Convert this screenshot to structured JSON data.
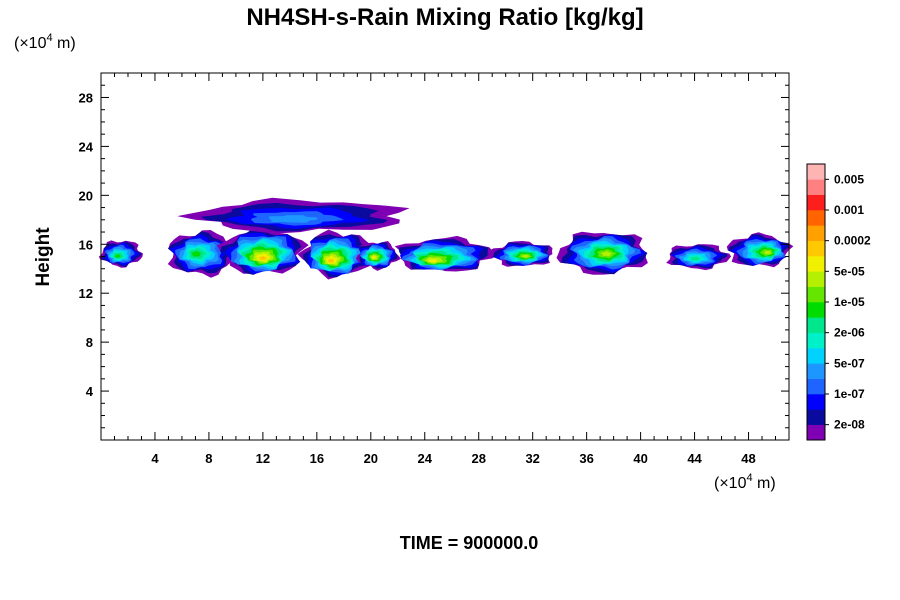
{
  "chart_data": {
    "type": "heatmap",
    "title": "NH4SH-s-Rain Mixing Ratio [kg/kg]",
    "ylabel": "Height",
    "xlabel": "",
    "x_unit_prefix": "(×10",
    "x_unit_exp": "4",
    "x_unit_suffix": " m)",
    "y_unit_prefix": "(×10",
    "y_unit_exp": "4",
    "y_unit_suffix": " m)",
    "xlim": [
      0,
      51
    ],
    "ylim": [
      0,
      30
    ],
    "x_ticks": [
      "4",
      "8",
      "12",
      "16",
      "20",
      "24",
      "28",
      "32",
      "36",
      "40",
      "44",
      "48"
    ],
    "y_ticks": [
      "4",
      "8",
      "12",
      "16",
      "20",
      "24",
      "28"
    ],
    "grid": false,
    "annotation": "TIME = 900000.0",
    "colorbar": {
      "colors": [
        "#7f00b2",
        "#0a0a9e",
        "#0000ff",
        "#1e64ff",
        "#1e96ff",
        "#00d2ff",
        "#00f0c8",
        "#00e68c",
        "#00dc00",
        "#64e600",
        "#b4f000",
        "#f0f000",
        "#ffc800",
        "#ffa000",
        "#ff6400",
        "#ff1e1e",
        "#ff8080",
        "#ffb4b4"
      ],
      "labels": [
        "2e-08",
        "1e-07",
        "5e-07",
        "2e-06",
        "1e-05",
        "5e-05",
        "0.0002",
        "0.001",
        "0.005"
      ]
    },
    "cloud_bands": [
      {
        "x0": 0.0,
        "x1": 3.0,
        "y0": 14.2,
        "y1": 16.3,
        "peak": 8,
        "cx": 1.2,
        "cy": 15.0
      },
      {
        "x0": 5.0,
        "x1": 10.0,
        "y0": 13.5,
        "y1": 17.0,
        "peak": 8,
        "cx": 7.0,
        "cy": 15.2
      },
      {
        "x0": 9.0,
        "x1": 15.0,
        "y0": 13.6,
        "y1": 17.3,
        "peak": 12,
        "cx": 12.0,
        "cy": 14.8
      },
      {
        "x0": 15.0,
        "x1": 20.0,
        "y0": 13.4,
        "y1": 17.0,
        "peak": 12,
        "cx": 17.0,
        "cy": 14.6
      },
      {
        "x0": 19.0,
        "x1": 22.0,
        "y0": 14.0,
        "y1": 16.2,
        "peak": 11,
        "cx": 20.2,
        "cy": 14.9
      },
      {
        "x0": 22.0,
        "x1": 29.0,
        "y0": 13.8,
        "y1": 16.5,
        "peak": 11,
        "cx": 24.5,
        "cy": 14.6
      },
      {
        "x0": 29.0,
        "x1": 33.5,
        "y0": 14.2,
        "y1": 16.2,
        "peak": 10,
        "cx": 31.5,
        "cy": 15.0
      },
      {
        "x0": 34.0,
        "x1": 40.5,
        "y0": 13.6,
        "y1": 17.0,
        "peak": 10,
        "cx": 37.5,
        "cy": 15.2
      },
      {
        "x0": 42.0,
        "x1": 46.5,
        "y0": 14.0,
        "y1": 16.0,
        "peak": 7,
        "cx": 44.0,
        "cy": 14.8
      },
      {
        "x0": 46.5,
        "x1": 51.0,
        "y0": 14.2,
        "y1": 16.8,
        "peak": 10,
        "cx": 49.5,
        "cy": 15.3
      },
      {
        "x0": 7.0,
        "x1": 22.5,
        "y0": 17.0,
        "y1": 19.6,
        "peak": 4,
        "cx": 14.0,
        "cy": 18.0
      }
    ]
  }
}
